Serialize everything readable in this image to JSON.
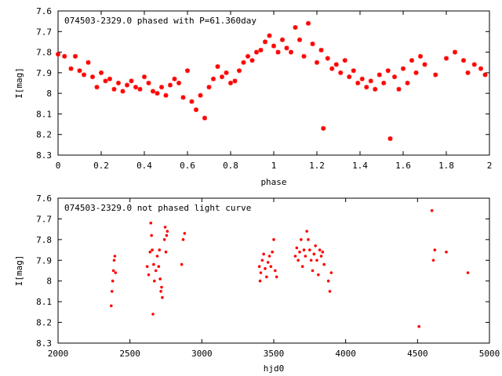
{
  "chart_data": [
    {
      "type": "scatter",
      "title": "074503-2329.0 phased with P=61.360day",
      "xlabel": "phase",
      "ylabel": "I[mag]",
      "xlim": [
        0,
        2
      ],
      "ylim": [
        7.6,
        8.3
      ],
      "y_inverted": true,
      "xticks": [
        0,
        0.2,
        0.4,
        0.6,
        0.8,
        1,
        1.2,
        1.4,
        1.6,
        1.8,
        2
      ],
      "xtick_labels": [
        "0",
        "0.2",
        "0.4",
        "0.6",
        "0.8",
        "1",
        "1.2",
        "1.4",
        "1.6",
        "1.8",
        "2"
      ],
      "yticks": [
        7.6,
        7.7,
        7.8,
        7.9,
        8,
        8.1,
        8.2,
        8.3
      ],
      "ytick_labels": [
        "7.6",
        "7.7",
        "7.8",
        "7.9",
        "8",
        "8.1",
        "8.2",
        "8.3"
      ],
      "grid": false,
      "marker_color": "#ff0000",
      "marker": "star",
      "series": [
        {
          "points": [
            [
              0.0,
              7.81
            ],
            [
              0.03,
              7.82
            ],
            [
              0.06,
              7.88
            ],
            [
              0.08,
              7.82
            ],
            [
              0.1,
              7.89
            ],
            [
              0.12,
              7.91
            ],
            [
              0.14,
              7.85
            ],
            [
              0.16,
              7.92
            ],
            [
              0.18,
              7.97
            ],
            [
              0.2,
              7.9
            ],
            [
              0.22,
              7.94
            ],
            [
              0.24,
              7.93
            ],
            [
              0.26,
              7.98
            ],
            [
              0.28,
              7.95
            ],
            [
              0.3,
              7.99
            ],
            [
              0.32,
              7.96
            ],
            [
              0.34,
              7.94
            ],
            [
              0.36,
              7.97
            ],
            [
              0.38,
              7.98
            ],
            [
              0.4,
              7.92
            ],
            [
              0.42,
              7.95
            ],
            [
              0.44,
              7.99
            ],
            [
              0.46,
              8.0
            ],
            [
              0.48,
              7.97
            ],
            [
              0.5,
              8.01
            ],
            [
              0.52,
              7.96
            ],
            [
              0.54,
              7.93
            ],
            [
              0.56,
              7.95
            ],
            [
              0.58,
              8.02
            ],
            [
              0.6,
              7.89
            ],
            [
              0.62,
              8.04
            ],
            [
              0.64,
              8.08
            ],
            [
              0.66,
              8.01
            ],
            [
              0.68,
              8.12
            ],
            [
              0.7,
              7.97
            ],
            [
              0.72,
              7.93
            ],
            [
              0.74,
              7.87
            ],
            [
              0.76,
              7.92
            ],
            [
              0.78,
              7.9
            ],
            [
              0.8,
              7.95
            ],
            [
              0.82,
              7.94
            ],
            [
              0.84,
              7.89
            ],
            [
              0.86,
              7.85
            ],
            [
              0.88,
              7.82
            ],
            [
              0.9,
              7.84
            ],
            [
              0.92,
              7.8
            ],
            [
              0.94,
              7.79
            ],
            [
              0.96,
              7.75
            ],
            [
              0.98,
              7.72
            ],
            [
              1.0,
              7.77
            ],
            [
              1.02,
              7.8
            ],
            [
              1.04,
              7.74
            ],
            [
              1.06,
              7.78
            ],
            [
              1.08,
              7.8
            ],
            [
              1.1,
              7.68
            ],
            [
              1.12,
              7.74
            ],
            [
              1.14,
              7.82
            ],
            [
              1.16,
              7.66
            ],
            [
              1.18,
              7.76
            ],
            [
              1.2,
              7.85
            ],
            [
              1.22,
              7.79
            ],
            [
              1.23,
              8.17
            ],
            [
              1.25,
              7.83
            ],
            [
              1.27,
              7.88
            ],
            [
              1.29,
              7.86
            ],
            [
              1.31,
              7.9
            ],
            [
              1.33,
              7.84
            ],
            [
              1.35,
              7.92
            ],
            [
              1.37,
              7.89
            ],
            [
              1.39,
              7.95
            ],
            [
              1.41,
              7.93
            ],
            [
              1.43,
              7.97
            ],
            [
              1.45,
              7.94
            ],
            [
              1.47,
              7.98
            ],
            [
              1.49,
              7.91
            ],
            [
              1.51,
              7.95
            ],
            [
              1.53,
              7.89
            ],
            [
              1.54,
              8.22
            ],
            [
              1.56,
              7.92
            ],
            [
              1.58,
              7.98
            ],
            [
              1.6,
              7.88
            ],
            [
              1.62,
              7.95
            ],
            [
              1.64,
              7.84
            ],
            [
              1.66,
              7.9
            ],
            [
              1.68,
              7.82
            ],
            [
              1.7,
              7.86
            ],
            [
              1.75,
              7.91
            ],
            [
              1.8,
              7.83
            ],
            [
              1.84,
              7.8
            ],
            [
              1.88,
              7.84
            ],
            [
              1.9,
              7.9
            ],
            [
              1.93,
              7.86
            ],
            [
              1.96,
              7.88
            ],
            [
              1.98,
              7.91
            ]
          ]
        }
      ]
    },
    {
      "type": "scatter",
      "title": "074503-2329.0 not phased light curve",
      "xlabel": "hjd0",
      "ylabel": "I[mag]",
      "xlim": [
        2000,
        5000
      ],
      "ylim": [
        7.6,
        8.3
      ],
      "y_inverted": true,
      "xticks": [
        2000,
        2500,
        3000,
        3500,
        4000,
        4500,
        5000
      ],
      "xtick_labels": [
        "2000",
        "2500",
        "3000",
        "3500",
        "4000",
        "4500",
        "5000"
      ],
      "yticks": [
        7.6,
        7.7,
        7.8,
        7.9,
        8,
        8.1,
        8.2,
        8.3
      ],
      "ytick_labels": [
        "7.6",
        "7.7",
        "7.8",
        "7.9",
        "8",
        "8.1",
        "8.2",
        "8.3"
      ],
      "grid": false,
      "marker_color": "#ff0000",
      "marker": "dot",
      "series": [
        {
          "points": [
            [
              2370,
              8.12
            ],
            [
              2375,
              8.05
            ],
            [
              2380,
              8.0
            ],
            [
              2385,
              7.95
            ],
            [
              2390,
              7.9
            ],
            [
              2395,
              7.88
            ],
            [
              2400,
              7.96
            ],
            [
              2620,
              7.93
            ],
            [
              2630,
              7.97
            ],
            [
              2640,
              7.86
            ],
            [
              2645,
              7.72
            ],
            [
              2650,
              7.78
            ],
            [
              2655,
              7.85
            ],
            [
              2660,
              8.16
            ],
            [
              2665,
              7.92
            ],
            [
              2670,
              8.0
            ],
            [
              2680,
              7.95
            ],
            [
              2690,
              7.88
            ],
            [
              2700,
              7.93
            ],
            [
              2705,
              7.85
            ],
            [
              2710,
              7.99
            ],
            [
              2715,
              8.05
            ],
            [
              2720,
              8.03
            ],
            [
              2725,
              8.08
            ],
            [
              2740,
              7.8
            ],
            [
              2745,
              7.74
            ],
            [
              2750,
              7.86
            ],
            [
              2755,
              7.78
            ],
            [
              2760,
              7.76
            ],
            [
              2860,
              7.92
            ],
            [
              2870,
              7.8
            ],
            [
              2880,
              7.77
            ],
            [
              3400,
              7.93
            ],
            [
              3405,
              8.0
            ],
            [
              3410,
              7.96
            ],
            [
              3420,
              7.9
            ],
            [
              3430,
              7.87
            ],
            [
              3440,
              7.94
            ],
            [
              3450,
              7.98
            ],
            [
              3460,
              7.91
            ],
            [
              3470,
              7.88
            ],
            [
              3480,
              7.93
            ],
            [
              3490,
              7.86
            ],
            [
              3500,
              7.8
            ],
            [
              3510,
              7.95
            ],
            [
              3520,
              7.98
            ],
            [
              3650,
              7.88
            ],
            [
              3660,
              7.84
            ],
            [
              3670,
              7.9
            ],
            [
              3680,
              7.86
            ],
            [
              3690,
              7.8
            ],
            [
              3700,
              7.93
            ],
            [
              3710,
              7.85
            ],
            [
              3720,
              7.88
            ],
            [
              3730,
              7.76
            ],
            [
              3740,
              7.8
            ],
            [
              3750,
              7.85
            ],
            [
              3760,
              7.9
            ],
            [
              3770,
              7.95
            ],
            [
              3780,
              7.87
            ],
            [
              3790,
              7.83
            ],
            [
              3800,
              7.9
            ],
            [
              3810,
              7.97
            ],
            [
              3820,
              7.85
            ],
            [
              3830,
              7.88
            ],
            [
              3840,
              7.86
            ],
            [
              3850,
              7.92
            ],
            [
              3880,
              8.0
            ],
            [
              3890,
              8.05
            ],
            [
              3900,
              7.96
            ],
            [
              4510,
              8.22
            ],
            [
              4600,
              7.66
            ],
            [
              4610,
              7.9
            ],
            [
              4620,
              7.85
            ],
            [
              4700,
              7.86
            ],
            [
              4850,
              7.96
            ]
          ]
        }
      ]
    }
  ]
}
